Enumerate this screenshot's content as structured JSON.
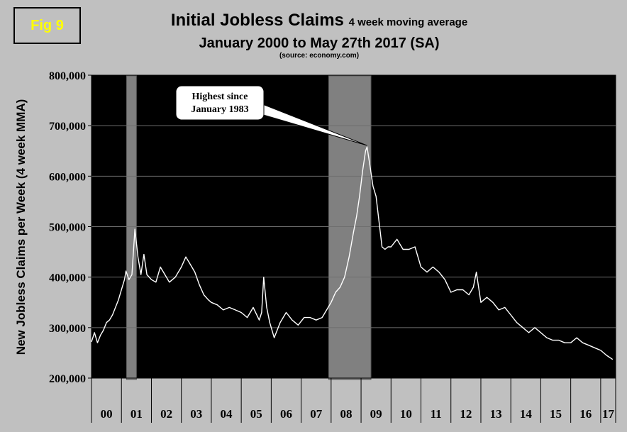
{
  "badge": {
    "label": "Fig 9"
  },
  "header": {
    "title": "Initial Jobless Claims",
    "title_suffix": "4 week moving average",
    "subtitle": "January 2000 to May 27th 2017 (SA)",
    "source": "(source: economy.com)"
  },
  "chart_data": {
    "type": "line",
    "title": "Initial Jobless Claims 4 week moving average",
    "subtitle": "January 2000 to May 27th 2017 (SA)",
    "ylabel": "New Jobless Claims per Week (4 week MMA)",
    "xlabel": "",
    "ylim": [
      200000,
      800000
    ],
    "xlim": [
      2000.0,
      2017.5
    ],
    "yticks": [
      200000,
      300000,
      400000,
      500000,
      600000,
      700000,
      800000
    ],
    "ytick_labels": [
      "200,000",
      "300,000",
      "400,000",
      "500,000",
      "600,000",
      "700,000",
      "800,000"
    ],
    "year_labels": [
      "00",
      "01",
      "02",
      "03",
      "04",
      "05",
      "06",
      "07",
      "08",
      "09",
      "10",
      "11",
      "12",
      "13",
      "14",
      "15",
      "16",
      "17"
    ],
    "grid": true,
    "background_color": "#000000",
    "line_color": "#ffffff",
    "recession_color": "#808080",
    "recessions": [
      [
        2001.17,
        2001.5
      ],
      [
        2007.92,
        2009.33
      ]
    ],
    "annotation": {
      "text_lines": [
        "Highest since",
        "January 1983"
      ],
      "point": [
        2009.2,
        658000
      ]
    },
    "series": [
      {
        "x": [
          2000.0,
          2000.1,
          2000.2,
          2000.3,
          2000.4,
          2000.5,
          2000.6,
          2000.7,
          2000.8,
          2000.9,
          2001.0,
          2001.1,
          2001.15,
          2001.25,
          2001.35,
          2001.45,
          2001.55,
          2001.65,
          2001.75,
          2001.85,
          2002.0,
          2002.15,
          2002.3,
          2002.45,
          2002.6,
          2002.8,
          2003.0,
          2003.15,
          2003.3,
          2003.45,
          2003.6,
          2003.75,
          2003.9,
          2004.0,
          2004.2,
          2004.4,
          2004.6,
          2004.8,
          2005.0,
          2005.2,
          2005.4,
          2005.6,
          2005.68,
          2005.75,
          2005.85,
          2005.95,
          2006.1,
          2006.3,
          2006.5,
          2006.7,
          2006.9,
          2007.1,
          2007.3,
          2007.5,
          2007.7,
          2007.9,
          2008.0,
          2008.15,
          2008.3,
          2008.45,
          2008.6,
          2008.75,
          2008.85,
          2008.95,
          2009.05,
          2009.15,
          2009.2,
          2009.3,
          2009.4,
          2009.5,
          2009.6,
          2009.7,
          2009.8,
          2009.9,
          2010.0,
          2010.2,
          2010.4,
          2010.6,
          2010.8,
          2011.0,
          2011.2,
          2011.4,
          2011.6,
          2011.8,
          2012.0,
          2012.2,
          2012.4,
          2012.6,
          2012.75,
          2012.85,
          2013.0,
          2013.2,
          2013.4,
          2013.6,
          2013.8,
          2014.0,
          2014.2,
          2014.4,
          2014.6,
          2014.8,
          2015.0,
          2015.2,
          2015.4,
          2015.6,
          2015.8,
          2016.0,
          2016.2,
          2016.4,
          2016.6,
          2016.8,
          2017.0,
          2017.2,
          2017.4
        ],
        "y": [
          272000,
          290000,
          270000,
          285000,
          295000,
          310000,
          315000,
          325000,
          340000,
          355000,
          375000,
          395000,
          412000,
          395000,
          405000,
          495000,
          440000,
          405000,
          445000,
          405000,
          395000,
          390000,
          420000,
          405000,
          390000,
          400000,
          420000,
          440000,
          425000,
          410000,
          385000,
          365000,
          355000,
          350000,
          345000,
          335000,
          340000,
          335000,
          330000,
          320000,
          340000,
          315000,
          330000,
          400000,
          340000,
          310000,
          280000,
          310000,
          330000,
          315000,
          305000,
          320000,
          320000,
          315000,
          320000,
          340000,
          350000,
          370000,
          380000,
          400000,
          440000,
          490000,
          520000,
          560000,
          610000,
          650000,
          658000,
          620000,
          580000,
          560000,
          510000,
          460000,
          455000,
          460000,
          460000,
          475000,
          455000,
          455000,
          460000,
          420000,
          410000,
          420000,
          410000,
          395000,
          370000,
          375000,
          375000,
          365000,
          380000,
          410000,
          350000,
          360000,
          350000,
          335000,
          340000,
          325000,
          310000,
          300000,
          290000,
          300000,
          290000,
          280000,
          275000,
          275000,
          270000,
          270000,
          280000,
          270000,
          265000,
          260000,
          255000,
          245000,
          237000
        ]
      }
    ]
  }
}
